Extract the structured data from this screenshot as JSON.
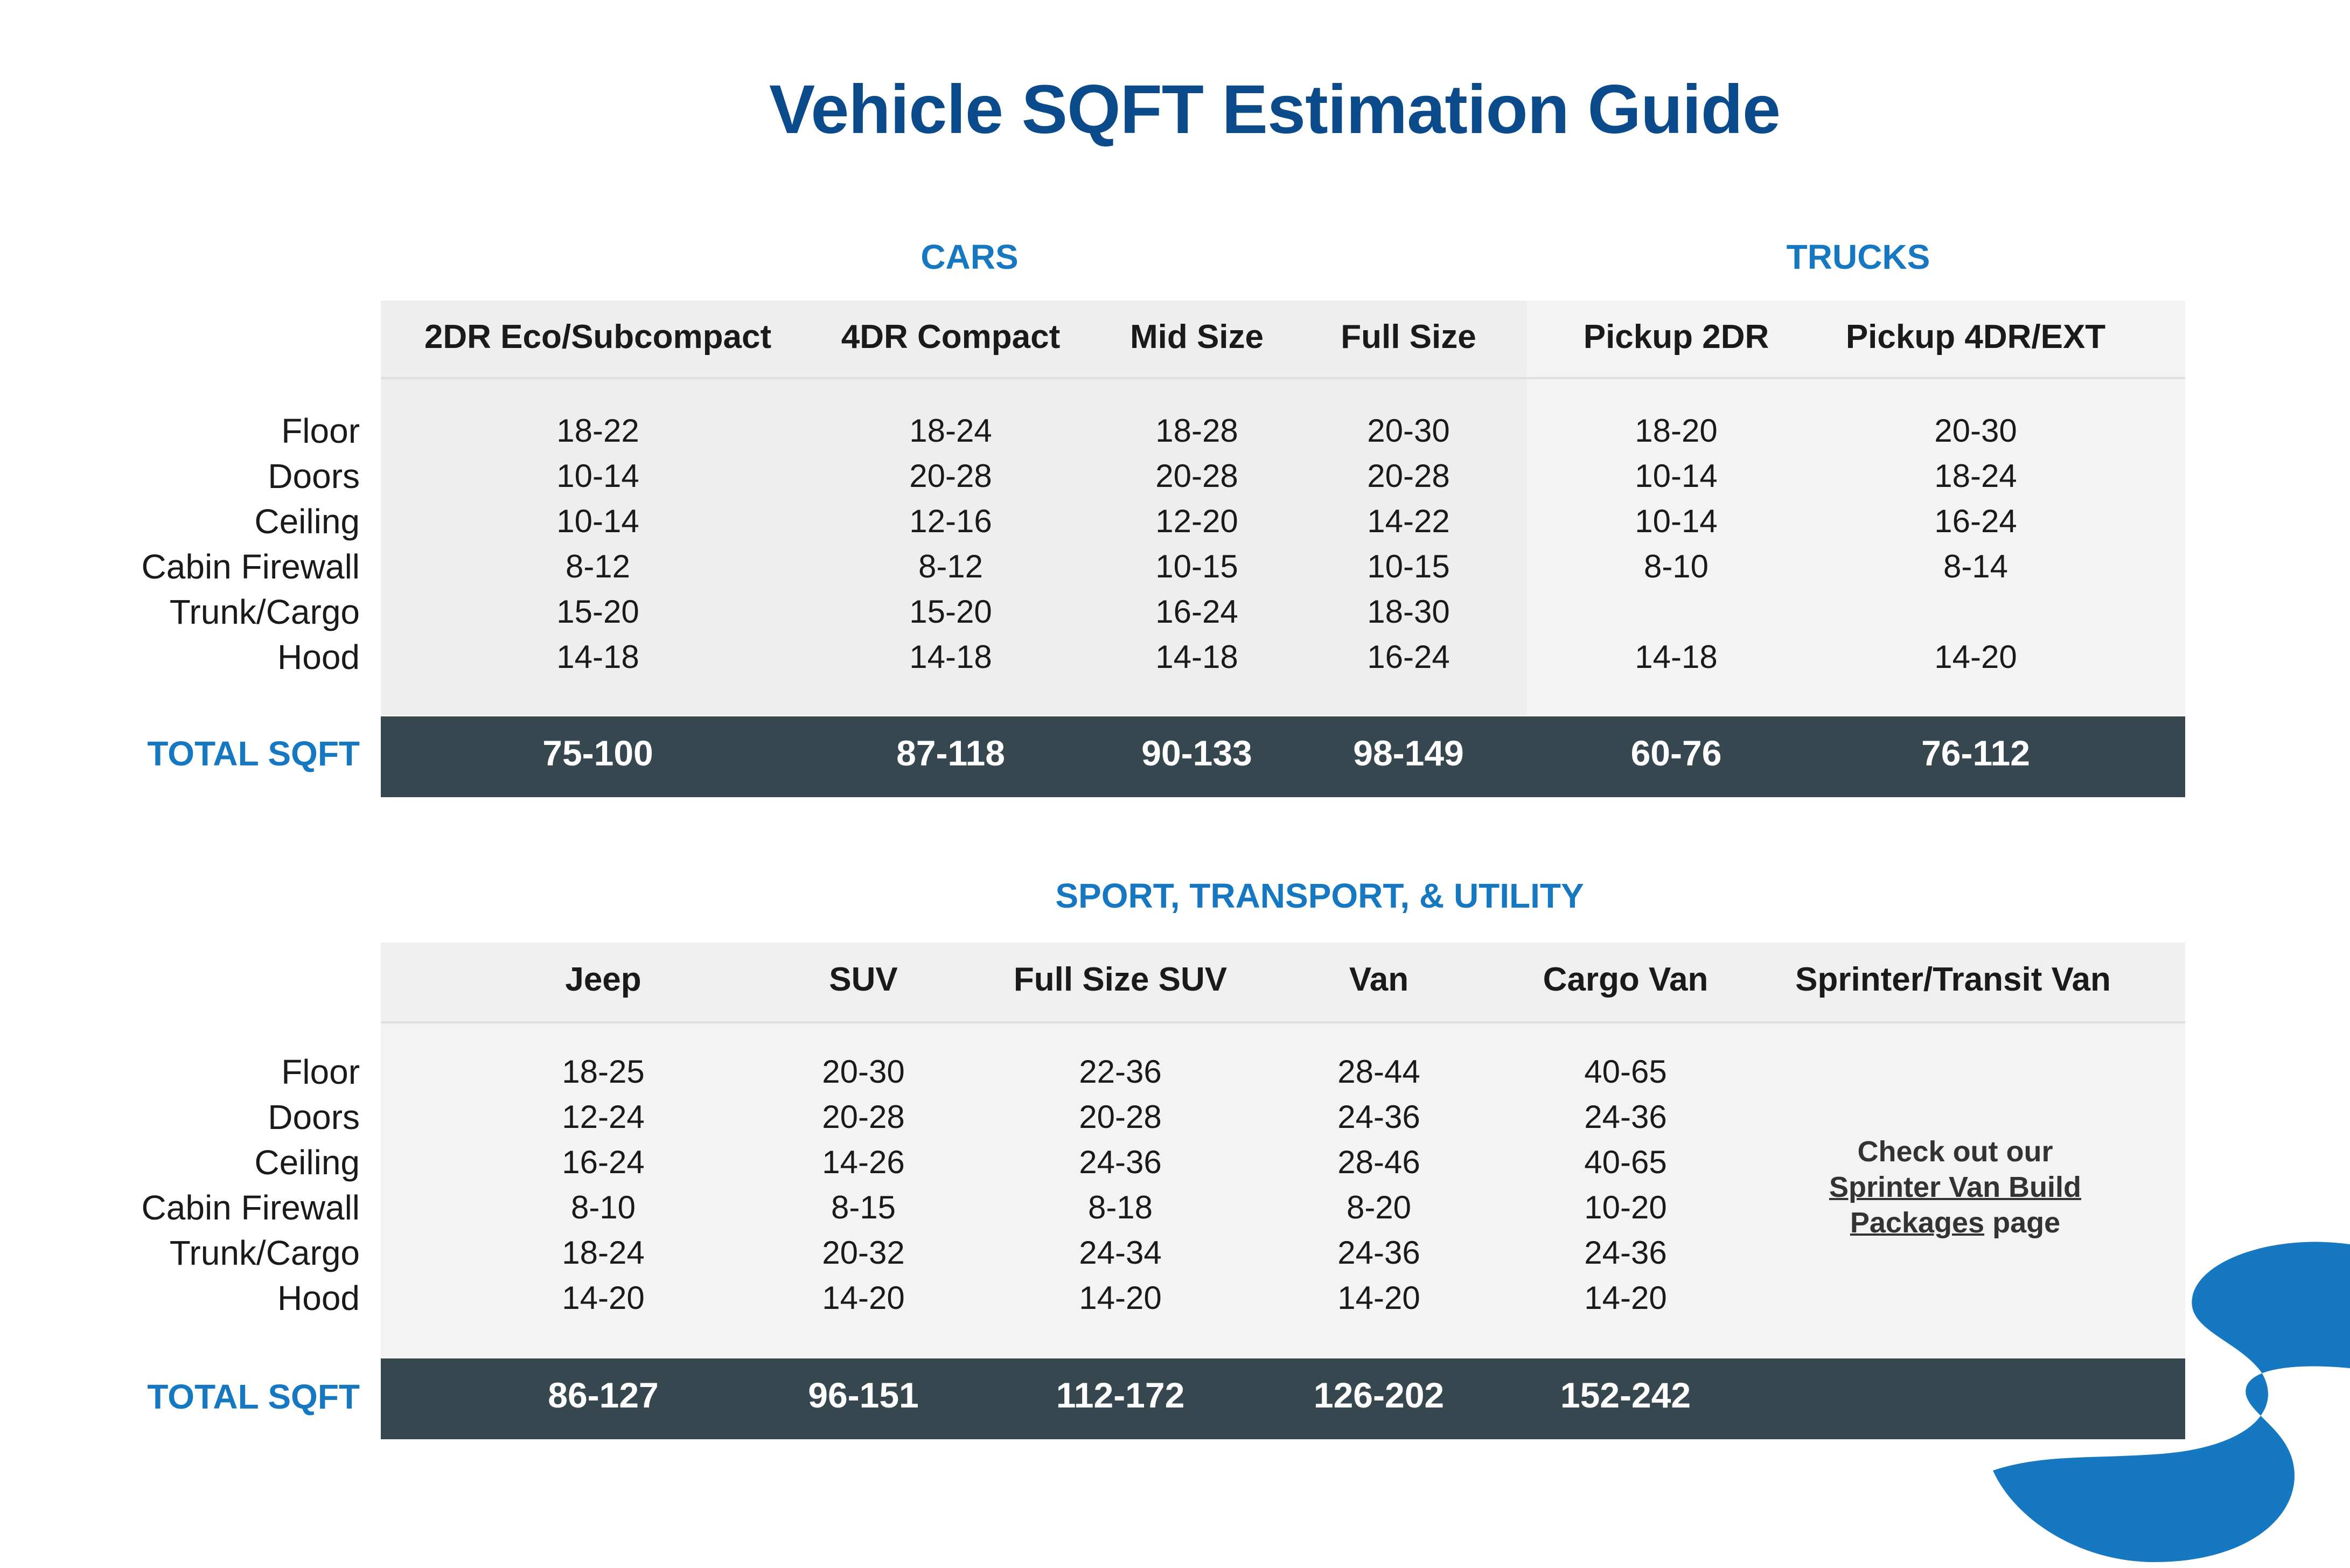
{
  "title": "Vehicle SQFT Estimation Guide",
  "row_labels": [
    "Floor",
    "Doors",
    "Ceiling",
    "Cabin Firewall",
    "Trunk/Cargo",
    "Hood"
  ],
  "total_label": "TOTAL SQFT",
  "table1": {
    "group_cars": "CARS",
    "group_trucks": "TRUCKS",
    "columns": [
      {
        "name": "2DR Eco/Subcompact",
        "values": [
          "18-22",
          "10-14",
          "10-14",
          "8-12",
          "15-20",
          "14-18"
        ],
        "total": "75-100"
      },
      {
        "name": "4DR Compact",
        "values": [
          "18-24",
          "20-28",
          "12-16",
          "8-12",
          "15-20",
          "14-18"
        ],
        "total": "87-118"
      },
      {
        "name": "Mid Size",
        "values": [
          "18-28",
          "20-28",
          "12-20",
          "10-15",
          "16-24",
          "14-18"
        ],
        "total": "90-133"
      },
      {
        "name": "Full Size",
        "values": [
          "20-30",
          "20-28",
          "14-22",
          "10-15",
          "18-30",
          "16-24"
        ],
        "total": "98-149"
      },
      {
        "name": "Pickup 2DR",
        "values": [
          "18-20",
          "10-14",
          "10-14",
          "8-10",
          "",
          "14-18"
        ],
        "total": "60-76"
      },
      {
        "name": "Pickup 4DR/EXT",
        "values": [
          "20-30",
          "18-24",
          "16-24",
          "8-14",
          "",
          "14-20"
        ],
        "total": "76-112"
      }
    ]
  },
  "table2": {
    "group": "SPORT, TRANSPORT, & UTILITY",
    "columns": [
      {
        "name": "Jeep",
        "values": [
          "18-25",
          "12-24",
          "16-24",
          "8-10",
          "18-24",
          "14-20"
        ],
        "total": "86-127"
      },
      {
        "name": "SUV",
        "values": [
          "20-30",
          "20-28",
          "14-26",
          "8-15",
          "20-32",
          "14-20"
        ],
        "total": "96-151"
      },
      {
        "name": "Full Size SUV",
        "values": [
          "22-36",
          "20-28",
          "24-36",
          "8-18",
          "24-34",
          "14-20"
        ],
        "total": "112-172"
      },
      {
        "name": "Van",
        "values": [
          "28-44",
          "24-36",
          "28-46",
          "8-20",
          "24-36",
          "14-20"
        ],
        "total": "126-202"
      },
      {
        "name": "Cargo Van",
        "values": [
          "40-65",
          "24-36",
          "40-65",
          "10-20",
          "24-36",
          "14-20"
        ],
        "total": "152-242"
      },
      {
        "name": "Sprinter/Transit Van",
        "values": [
          "",
          "",
          "",
          "",
          "",
          ""
        ],
        "total": ""
      }
    ],
    "sprinter_note": {
      "line1": "Check out our",
      "link_line1": "Sprinter Van Build",
      "link_line2": "Packages",
      "suffix": " page"
    }
  },
  "colors": {
    "title": "#0b4a8b",
    "accent": "#1778c2",
    "total_bar": "#37474f"
  }
}
